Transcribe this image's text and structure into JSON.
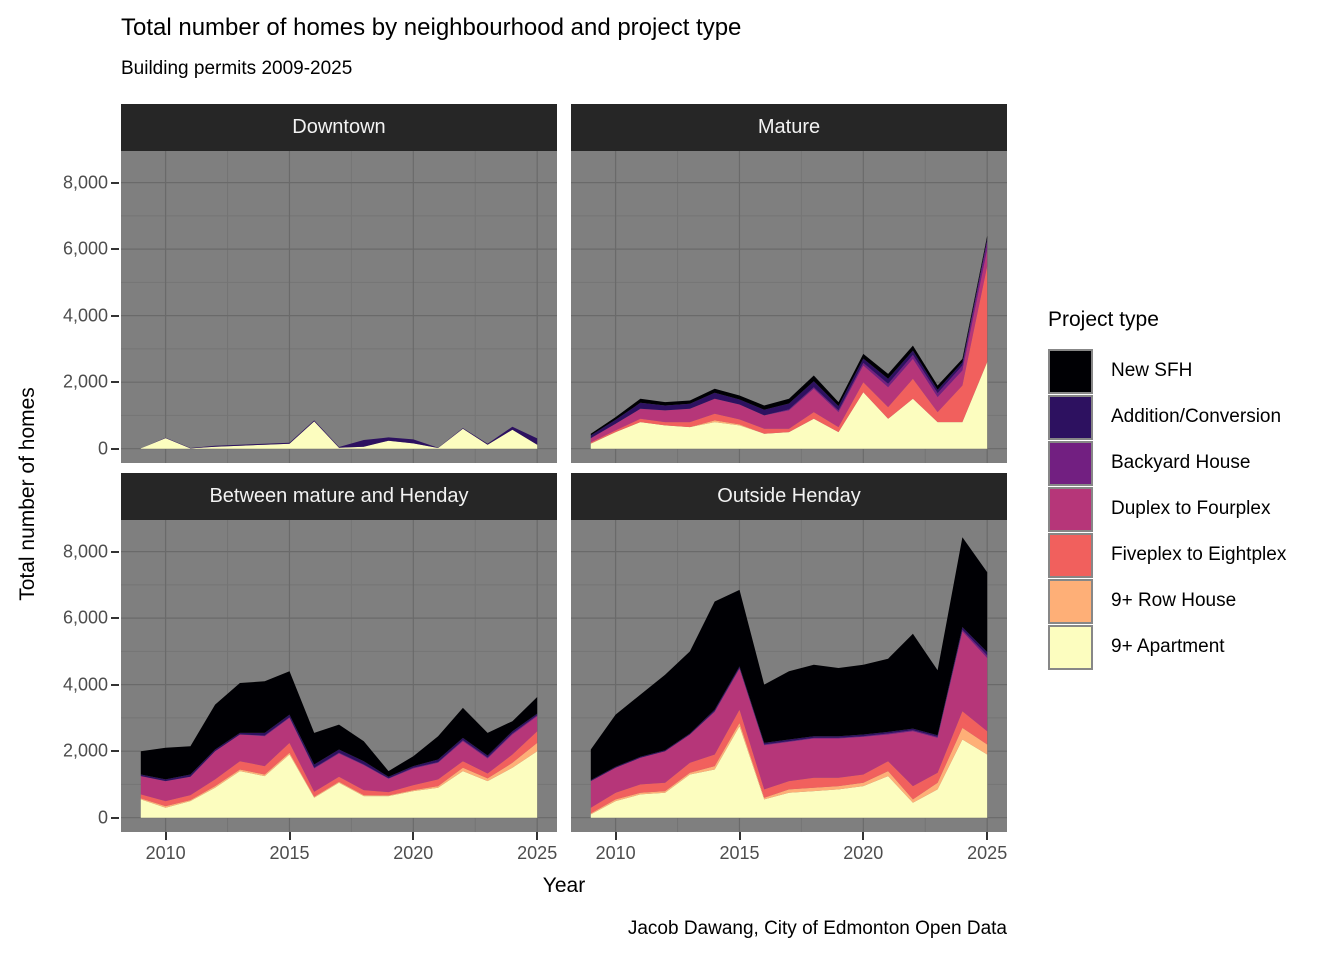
{
  "title": "Total number of homes by neighbourhood and project type",
  "subtitle": "Building permits 2009-2025",
  "caption": "Jacob Dawang, City of Edmonton Open Data",
  "axes": {
    "x_label": "Year",
    "y_label": "Total number of homes",
    "x_tick_labels": [
      "2010",
      "2015",
      "2020",
      "2025"
    ],
    "y_tick_labels": [
      "0",
      "2,000",
      "4,000",
      "6,000",
      "8,000"
    ]
  },
  "legend": {
    "title": "Project type",
    "items": [
      {
        "label": "New SFH",
        "color": "#000004"
      },
      {
        "label": "Addition/Conversion",
        "color": "#2d1160"
      },
      {
        "label": "Backyard House",
        "color": "#721f81"
      },
      {
        "label": "Duplex to Fourplex",
        "color": "#b63679"
      },
      {
        "label": "Fiveplex to Eightplex",
        "color": "#f1605d"
      },
      {
        "label": "9+ Row House",
        "color": "#feaf77"
      },
      {
        "label": "9+ Apartment",
        "color": "#fcfdbf"
      }
    ]
  },
  "colors": {
    "background": "#ffffff",
    "panel_bg": "#7f7f7f",
    "grid_major": "#6a6a6a",
    "grid_minor": "#757575",
    "strip_bg": "#262626",
    "strip_text": "#f2f2f2",
    "axis_text": "#4d4d4d",
    "tick_mark": "#333333"
  },
  "chart_data": {
    "type": "area",
    "stacked": true,
    "title": "Total number of homes by neighbourhood and project type",
    "subtitle": "Building permits 2009-2025",
    "xlabel": "Year",
    "ylabel": "Total number of homes",
    "x": [
      2009,
      2010,
      2011,
      2012,
      2013,
      2014,
      2015,
      2016,
      2017,
      2018,
      2019,
      2020,
      2021,
      2022,
      2023,
      2024,
      2025
    ],
    "x_domain": [
      2008.2,
      2025.8
    ],
    "y_domain": [
      -430,
      8950
    ],
    "x_major": [
      2010,
      2015,
      2020,
      2025
    ],
    "x_minor": [
      2012.5,
      2017.5,
      2022.5
    ],
    "y_major": [
      0,
      2000,
      4000,
      6000,
      8000
    ],
    "y_minor": [
      1000,
      3000,
      5000,
      7000
    ],
    "grid": true,
    "legend_position": "right",
    "stack_order_bottom_to_top": [
      "9+ Apartment",
      "9+ Row House",
      "Fiveplex to Eightplex",
      "Duplex to Fourplex",
      "Backyard House",
      "Addition/Conversion",
      "New SFH"
    ],
    "facets": [
      {
        "label": "Downtown",
        "series": [
          {
            "name": "New SFH",
            "values": [
              0,
              0,
              0,
              0,
              0,
              0,
              0,
              0,
              0,
              0,
              0,
              0,
              0,
              0,
              0,
              0,
              0
            ]
          },
          {
            "name": "Addition/Conversion",
            "values": [
              0,
              10,
              10,
              30,
              30,
              30,
              30,
              30,
              20,
              200,
              100,
              120,
              10,
              20,
              30,
              90,
              190
            ]
          },
          {
            "name": "Backyard House",
            "values": [
              0,
              0,
              0,
              0,
              0,
              0,
              0,
              0,
              0,
              0,
              0,
              0,
              0,
              0,
              0,
              0,
              0
            ]
          },
          {
            "name": "Duplex to Fourplex",
            "values": [
              0,
              0,
              0,
              0,
              0,
              0,
              0,
              0,
              0,
              0,
              0,
              0,
              0,
              0,
              0,
              0,
              0
            ]
          },
          {
            "name": "Fiveplex to Eightplex",
            "values": [
              0,
              0,
              0,
              0,
              0,
              0,
              0,
              0,
              0,
              0,
              0,
              0,
              0,
              0,
              0,
              0,
              0
            ]
          },
          {
            "name": "9+ Row House",
            "values": [
              0,
              0,
              0,
              0,
              0,
              0,
              0,
              0,
              0,
              0,
              0,
              0,
              0,
              0,
              0,
              0,
              0
            ]
          },
          {
            "name": "9+ Apartment",
            "values": [
              10,
              320,
              10,
              60,
              90,
              120,
              150,
              820,
              30,
              60,
              240,
              160,
              20,
              600,
              120,
              570,
              120
            ]
          }
        ]
      },
      {
        "label": "Mature",
        "series": [
          {
            "name": "New SFH",
            "values": [
              50,
              80,
              120,
              100,
              100,
              120,
              120,
              130,
              140,
              170,
              120,
              140,
              150,
              150,
              130,
              100,
              80
            ]
          },
          {
            "name": "Addition/Conversion",
            "values": [
              80,
              120,
              180,
              150,
              150,
              180,
              150,
              170,
              180,
              180,
              130,
              130,
              150,
              130,
              100,
              100,
              80
            ]
          },
          {
            "name": "Backyard House",
            "values": [
              10,
              0,
              0,
              0,
              0,
              0,
              0,
              0,
              30,
              50,
              50,
              80,
              100,
              120,
              120,
              150,
              250
            ]
          },
          {
            "name": "Duplex to Fourplex",
            "values": [
              120,
              200,
              300,
              350,
              400,
              450,
              450,
              400,
              550,
              700,
              450,
              500,
              600,
              600,
              450,
              450,
              500
            ]
          },
          {
            "name": "Fiveplex to Eightplex",
            "values": [
              30,
              50,
              100,
              100,
              150,
              200,
              150,
              150,
              100,
              200,
              150,
              300,
              350,
              600,
              300,
              1100,
              2870
            ]
          },
          {
            "name": "9+ Row House",
            "values": [
              10,
              0,
              0,
              0,
              0,
              50,
              30,
              0,
              0,
              0,
              0,
              0,
              0,
              0,
              0,
              0,
              20
            ]
          },
          {
            "name": "9+ Apartment",
            "values": [
              150,
              500,
              800,
              700,
              650,
              800,
              700,
              450,
              500,
              900,
              500,
              1700,
              900,
              1500,
              800,
              800,
              2600
            ]
          }
        ]
      },
      {
        "label": "Between mature and Henday",
        "series": [
          {
            "name": "New SFH",
            "values": [
              700,
              950,
              850,
              1350,
              1500,
              1550,
              1300,
              950,
              750,
              600,
              170,
              300,
              700,
              900,
              680,
              300,
              500
            ]
          },
          {
            "name": "Addition/Conversion",
            "values": [
              50,
              50,
              70,
              50,
              50,
              80,
              80,
              100,
              100,
              100,
              50,
              50,
              80,
              70,
              60,
              70,
              50
            ]
          },
          {
            "name": "Backyard House",
            "values": [
              0,
              0,
              0,
              0,
              0,
              20,
              20,
              20,
              20,
              20,
              10,
              20,
              20,
              30,
              30,
              30,
              30
            ]
          },
          {
            "name": "Duplex to Fourplex",
            "values": [
              550,
              600,
              550,
              850,
              800,
              900,
              750,
              700,
              700,
              750,
              400,
              500,
              500,
              600,
              450,
              600,
              450
            ]
          },
          {
            "name": "Fiveplex to Eightplex",
            "values": [
              120,
              150,
              150,
              200,
              250,
              250,
              300,
              150,
              150,
              150,
              100,
              150,
              200,
              200,
              150,
              250,
              350
            ]
          },
          {
            "name": "9+ Row House",
            "values": [
              30,
              50,
              30,
              50,
              50,
              50,
              50,
              30,
              30,
              30,
              20,
              30,
              50,
              100,
              80,
              150,
              250
            ]
          },
          {
            "name": "9+ Apartment",
            "values": [
              550,
              300,
              500,
              900,
              1400,
              1250,
              1900,
              600,
              1050,
              650,
              650,
              800,
              900,
              1400,
              1100,
              1500,
              2000
            ]
          }
        ]
      },
      {
        "label": "Outside Henday",
        "series": [
          {
            "name": "New SFH",
            "values": [
              920,
              1570,
              1870,
              2270,
              2470,
              3250,
              2300,
              1750,
              2050,
              2150,
              2050,
              2100,
              2200,
              2850,
              1950,
              2700,
              2400
            ]
          },
          {
            "name": "Addition/Conversion",
            "values": [
              30,
              30,
              30,
              30,
              30,
              50,
              50,
              50,
              50,
              50,
              50,
              50,
              50,
              50,
              50,
              80,
              100
            ]
          },
          {
            "name": "Backyard House",
            "values": [
              0,
              0,
              0,
              0,
              0,
              20,
              20,
              20,
              20,
              20,
              20,
              20,
              30,
              30,
              30,
              50,
              80
            ]
          },
          {
            "name": "Duplex to Fourplex",
            "values": [
              800,
              750,
              800,
              950,
              850,
              1280,
              1230,
              1330,
              1180,
              1180,
              1180,
              1130,
              800,
              1650,
              1050,
              2400,
              2200
            ]
          },
          {
            "name": "Fiveplex to Eightplex",
            "values": [
              170,
              200,
              250,
              250,
              300,
              350,
              400,
              250,
              250,
              300,
              250,
              250,
              300,
              400,
              300,
              500,
              400
            ]
          },
          {
            "name": "9+ Row House",
            "values": [
              30,
              50,
              50,
              50,
              50,
              100,
              100,
              50,
              100,
              100,
              100,
              100,
              150,
              100,
              200,
              350,
              300
            ]
          },
          {
            "name": "9+ Apartment",
            "values": [
              100,
              500,
              700,
              750,
              1300,
              1450,
              2750,
              550,
              750,
              800,
              850,
              950,
              1250,
              450,
              850,
              2350,
              1900
            ]
          }
        ]
      }
    ]
  }
}
